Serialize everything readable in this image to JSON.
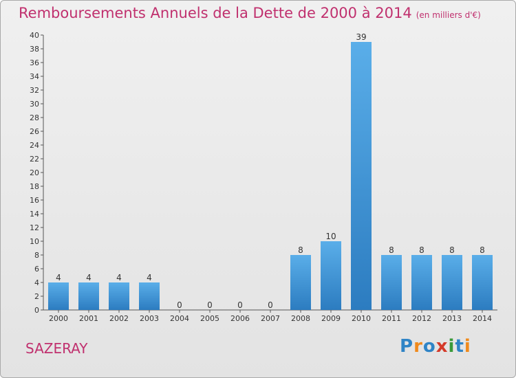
{
  "title": "Remboursements Annuels de la Dette de 2000 à 2014",
  "subtitle": "(en milliers d'€)",
  "commune": "SAZERAY",
  "logo": {
    "letters": [
      "P",
      "r",
      "o",
      "x",
      "i",
      "t",
      "i"
    ],
    "colors": [
      "#2f84c6",
      "#f08a1c",
      "#2f84c6",
      "#d43a2a",
      "#3a9a3a",
      "#2f84c6",
      "#f08a1c"
    ]
  },
  "colors": {
    "title": "#c0306e",
    "bar_light": "#5aaee9",
    "bar_dark": "#2c7cc0",
    "axis": "#555555",
    "grid": "#c8c8c8"
  },
  "chart_data": {
    "type": "bar",
    "title": "Remboursements Annuels de la Dette de 2000 à 2014",
    "subtitle": "(en milliers d'€)",
    "categories": [
      "2000",
      "2001",
      "2002",
      "2003",
      "2004",
      "2005",
      "2006",
      "2007",
      "2008",
      "2009",
      "2010",
      "2011",
      "2012",
      "2013",
      "2014"
    ],
    "values": [
      4,
      4,
      4,
      4,
      0,
      0,
      0,
      0,
      8,
      10,
      39,
      8,
      8,
      8,
      8
    ],
    "value_labels": [
      "4",
      "4",
      "4",
      "4",
      "0",
      "0",
      "0",
      "0",
      "8",
      "10",
      "39",
      "8",
      "8",
      "8",
      "8"
    ],
    "ylim": [
      0,
      40
    ],
    "yticks": [
      "0",
      "2",
      "4",
      "6",
      "8",
      "10",
      "12",
      "14",
      "16",
      "18",
      "20",
      "22",
      "24",
      "26",
      "28",
      "30",
      "32",
      "34",
      "36",
      "38",
      "40"
    ],
    "xlabel": "",
    "ylabel": "",
    "grid": false,
    "legend": "none"
  }
}
